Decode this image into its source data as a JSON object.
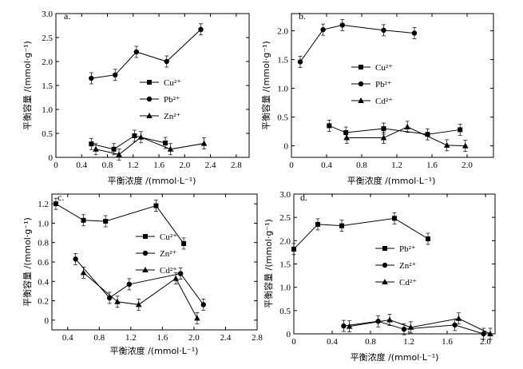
{
  "chart_data": [
    {
      "type": "line",
      "title": "a.",
      "xlabel": "平衡浓度 /(mmol·L⁻¹)",
      "ylabel": "平衡容量 /(mmol·g⁻¹)",
      "xlim": [
        0,
        3.0
      ],
      "ylim": [
        0,
        3.0
      ],
      "xticks": [
        "0",
        "0.4",
        "0.8",
        "1.2",
        "1.6",
        "2.0",
        "2.4",
        "2.8"
      ],
      "yticks": [
        "0",
        "0.5",
        "1.0",
        "1.5",
        "2.0",
        "2.5",
        "3.0"
      ],
      "legend_position": "center-right",
      "series": [
        {
          "name": "Cu²⁺",
          "marker": "square",
          "x": [
            0.55,
            0.9,
            1.22,
            1.7
          ],
          "y": [
            0.28,
            0.17,
            0.45,
            0.3
          ]
        },
        {
          "name": "Pb²⁺",
          "marker": "circle",
          "x": [
            0.55,
            0.92,
            1.25,
            1.72,
            2.25
          ],
          "y": [
            1.65,
            1.72,
            2.2,
            2.0,
            2.67
          ]
        },
        {
          "name": "Zn²⁺",
          "marker": "triangle",
          "x": [
            0.62,
            0.98,
            1.32,
            1.78,
            2.3
          ],
          "y": [
            0.17,
            0.06,
            0.42,
            0.17,
            0.29
          ]
        }
      ]
    },
    {
      "type": "line",
      "title": "b.",
      "xlabel": "平衡浓度 /(mmol·L⁻¹)",
      "ylabel": "平衡容量 /(mmol·g⁻¹)",
      "xlim": [
        0,
        2.3
      ],
      "ylim": [
        -0.2,
        2.3
      ],
      "xticks": [
        "0",
        "0.4",
        "0.8",
        "1.2",
        "1.6",
        "2.0"
      ],
      "yticks": [
        "0",
        "0.5",
        "1.0",
        "1.5",
        "2.0"
      ],
      "legend_position": "center-right",
      "series": [
        {
          "name": "Cu²⁺",
          "marker": "square",
          "x": [
            0.43,
            0.62,
            1.05,
            1.55,
            1.92
          ],
          "y": [
            0.35,
            0.23,
            0.3,
            0.2,
            0.28
          ]
        },
        {
          "name": "Pb²⁺",
          "marker": "circle",
          "x": [
            0.1,
            0.36,
            0.58,
            1.05,
            1.4
          ],
          "y": [
            1.46,
            2.02,
            2.1,
            2.01,
            1.96
          ]
        },
        {
          "name": "Cd²⁺",
          "marker": "triangle",
          "x": [
            0.63,
            1.05,
            1.32,
            1.77,
            1.98
          ],
          "y": [
            0.14,
            0.14,
            0.33,
            0.01,
            0.0
          ]
        }
      ]
    },
    {
      "type": "line",
      "title": "c.",
      "xlabel": "平衡浓度 /(mmol·L⁻¹)",
      "ylabel": "平衡容量 /(mmol·g⁻¹)",
      "xlim": [
        0.2,
        2.8
      ],
      "ylim": [
        -0.1,
        1.3
      ],
      "xticks": [
        "0.4",
        "0.8",
        "1.2",
        "1.6",
        "2.0",
        "2.4",
        "2.8"
      ],
      "yticks": [
        "0",
        "0.2",
        "0.4",
        "0.6",
        "0.8",
        "1.0",
        "1.2"
      ],
      "legend_position": "center-right",
      "series": [
        {
          "name": "Cu²⁺",
          "marker": "square",
          "x": [
            0.25,
            0.6,
            0.88,
            1.52,
            1.87
          ],
          "y": [
            1.2,
            1.03,
            1.02,
            1.18,
            0.79
          ]
        },
        {
          "name": "Zn²⁺",
          "marker": "circle",
          "x": [
            0.5,
            0.93,
            1.18,
            1.83,
            2.12
          ],
          "y": [
            0.63,
            0.23,
            0.37,
            0.48,
            0.16
          ]
        },
        {
          "name": "Cd²⁺",
          "marker": "triangle",
          "x": [
            0.6,
            1.03,
            1.3,
            1.77,
            2.04
          ],
          "y": [
            0.49,
            0.19,
            0.16,
            0.43,
            0.02
          ]
        }
      ]
    },
    {
      "type": "line",
      "title": "d.",
      "xlabel": "平衡浓度 /(mmol·L⁻¹)",
      "ylabel": "平衡容量 /(mmol·g⁻¹)",
      "xlim": [
        0,
        2.1
      ],
      "ylim": [
        0,
        3.0
      ],
      "xticks": [
        "0",
        "0.4",
        "0.8",
        "1.2",
        "1.6",
        "2.0"
      ],
      "yticks": [
        "0",
        "0.5",
        "1.0",
        "1.5",
        "2.0",
        "2.5",
        "3.0"
      ],
      "legend_position": "center-right",
      "series": [
        {
          "name": "Pb²⁺",
          "marker": "square",
          "x": [
            0.0,
            0.25,
            0.5,
            1.05,
            1.4
          ],
          "y": [
            1.82,
            2.35,
            2.32,
            2.48,
            2.04
          ]
        },
        {
          "name": "Zn²⁺",
          "marker": "circle",
          "x": [
            0.52,
            0.88,
            1.15,
            1.68,
            1.98
          ],
          "y": [
            0.17,
            0.27,
            0.1,
            0.19,
            0.0
          ]
        },
        {
          "name": "Cd²⁺",
          "marker": "triangle",
          "x": [
            0.58,
            1.0,
            1.22,
            1.72,
            2.05
          ],
          "y": [
            0.16,
            0.3,
            0.14,
            0.33,
            0.0
          ]
        }
      ]
    }
  ]
}
